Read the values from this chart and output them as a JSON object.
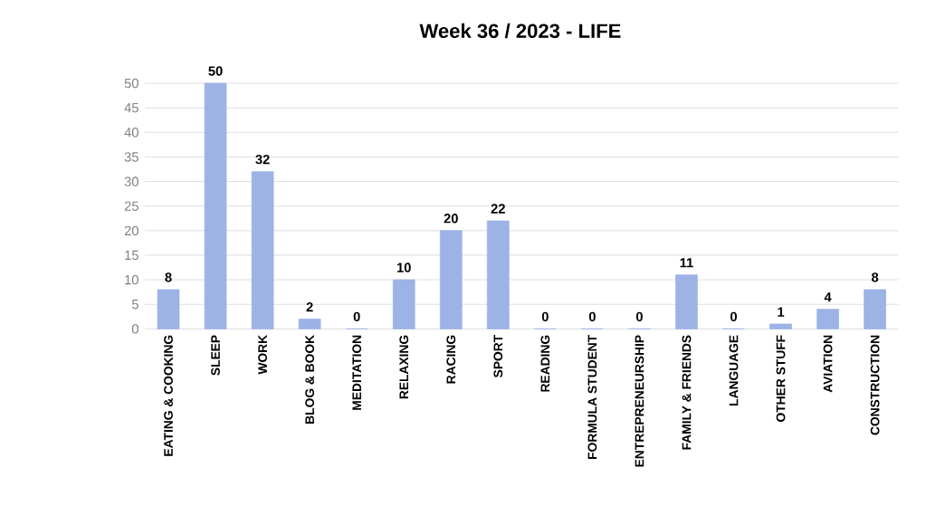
{
  "chart_data": {
    "type": "bar",
    "title": "Week 36 / 2023 - LIFE",
    "categories": [
      "EATING & COOKING",
      "SLEEP",
      "WORK",
      "BLOG & BOOK",
      "MEDITATION",
      "RELAXING",
      "RACING",
      "SPORT",
      "READING",
      "FORMULA STUDENT",
      "ENTREPRENEURSHIP",
      "FAMILY & FRIENDS",
      "LANGUAGE",
      "OTHER STUFF",
      "AVIATION",
      "CONSTRUCTION"
    ],
    "values": [
      8,
      50,
      32,
      2,
      0,
      10,
      20,
      22,
      0,
      0,
      0,
      11,
      0,
      1,
      4,
      8
    ],
    "color": "#9db3e6",
    "ylim": [
      0,
      50
    ],
    "yticks": [
      0,
      5,
      10,
      15,
      20,
      25,
      30,
      35,
      40,
      45,
      50
    ],
    "grid": "y",
    "data_labels": true
  }
}
